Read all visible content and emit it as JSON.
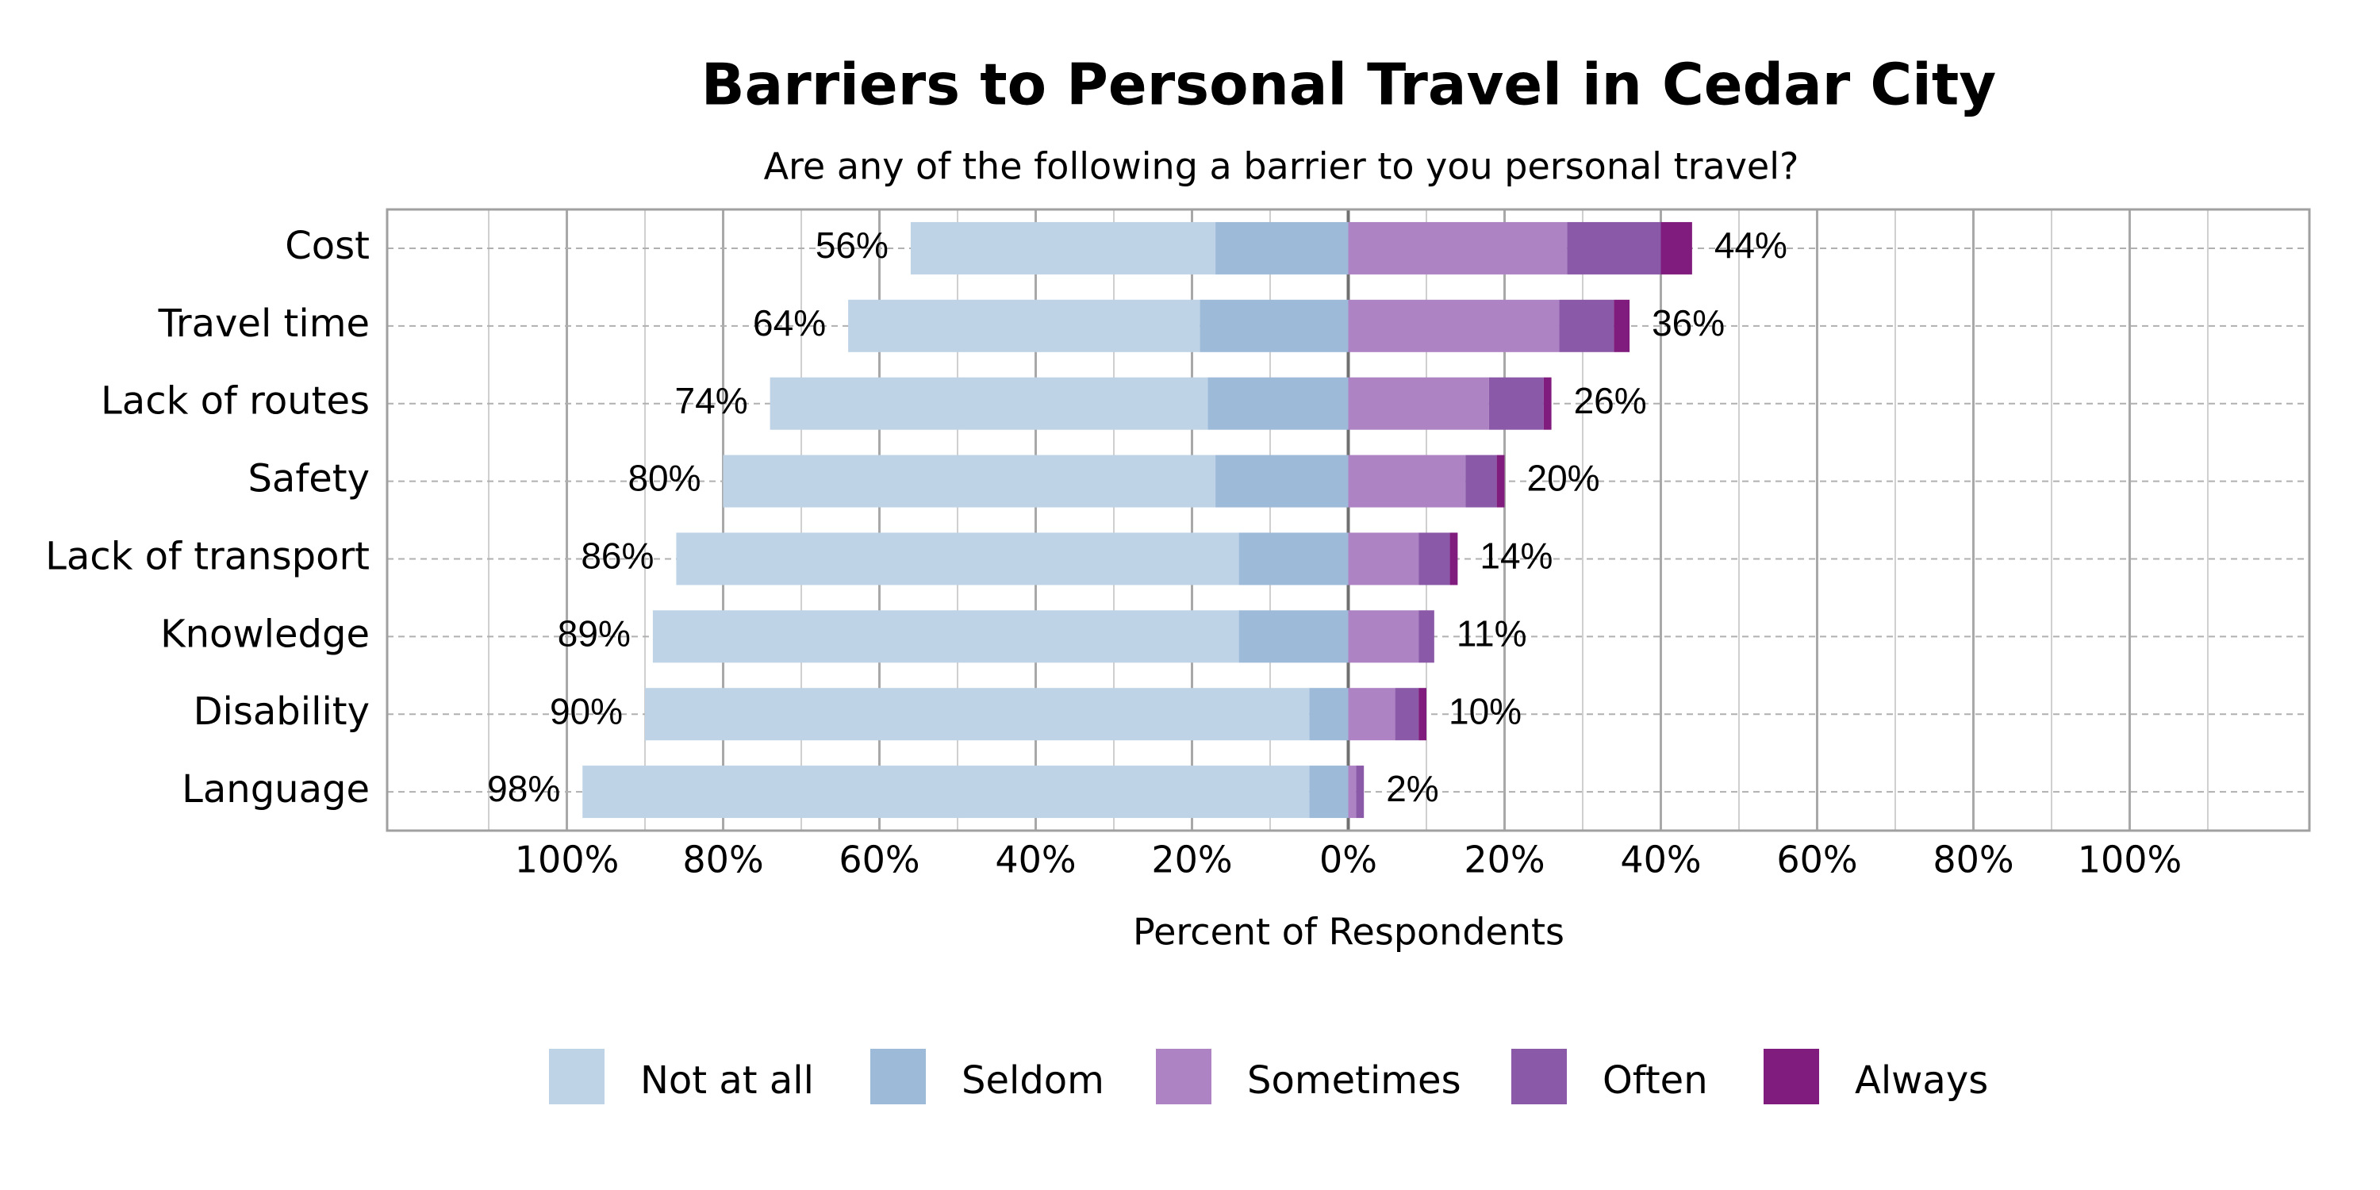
{
  "chart_data": {
    "type": "diverging-bar",
    "title": "Barriers to Personal Travel in Cedar City",
    "subtitle": "Are any of the following a barrier to you personal travel?",
    "x_label": "Percent of Respondents",
    "categories": [
      "Cost",
      "Travel time",
      "Lack of routes",
      "Safety",
      "Lack of transport",
      "Knowledge",
      "Disability",
      "Language"
    ],
    "series": [
      {
        "name": "Not at all",
        "color": "#bed3e6",
        "side": "left",
        "values": [
          39,
          45,
          56,
          63,
          72,
          75,
          85,
          93
        ]
      },
      {
        "name": "Seldom",
        "color": "#9dbad9",
        "side": "left",
        "values": [
          17,
          19,
          18,
          17,
          14,
          14,
          5,
          5
        ]
      },
      {
        "name": "Sometimes",
        "color": "#ad83c4",
        "side": "right",
        "values": [
          28,
          27,
          18,
          15,
          9,
          9,
          6,
          1
        ]
      },
      {
        "name": "Often",
        "color": "#8a59a8",
        "side": "right",
        "values": [
          12,
          7,
          7,
          4,
          4,
          2,
          3,
          1
        ]
      },
      {
        "name": "Always",
        "color": "#7f1c7d",
        "side": "right",
        "values": [
          4,
          2,
          1,
          1,
          1,
          0,
          1,
          0
        ]
      }
    ],
    "left_totals": {
      "values": [
        56,
        64,
        74,
        80,
        86,
        89,
        90,
        98
      ],
      "value_labels": [
        "56%",
        "64%",
        "74%",
        "80%",
        "86%",
        "89%",
        "90%",
        "98%"
      ]
    },
    "right_totals": {
      "values": [
        44,
        36,
        26,
        20,
        14,
        11,
        10,
        2
      ],
      "value_labels": [
        "44%",
        "36%",
        "26%",
        "20%",
        "14%",
        "11%",
        "10%",
        "2%"
      ]
    },
    "xlim": [
      -123,
      123
    ],
    "xticks": [
      {
        "value": -100,
        "label": "100%"
      },
      {
        "value": -80,
        "label": "80%"
      },
      {
        "value": -60,
        "label": "60%"
      },
      {
        "value": -40,
        "label": "40%"
      },
      {
        "value": -20,
        "label": "20%"
      },
      {
        "value": 0,
        "label": "0%"
      },
      {
        "value": 20,
        "label": "20%"
      },
      {
        "value": 40,
        "label": "40%"
      },
      {
        "value": 60,
        "label": "60%"
      },
      {
        "value": 80,
        "label": "80%"
      },
      {
        "value": 100,
        "label": "100%"
      }
    ],
    "minor_xticks": [
      -110,
      -90,
      -70,
      -50,
      -30,
      -10,
      10,
      30,
      50,
      70,
      90,
      110
    ],
    "grid": true,
    "legend_position": "bottom"
  }
}
